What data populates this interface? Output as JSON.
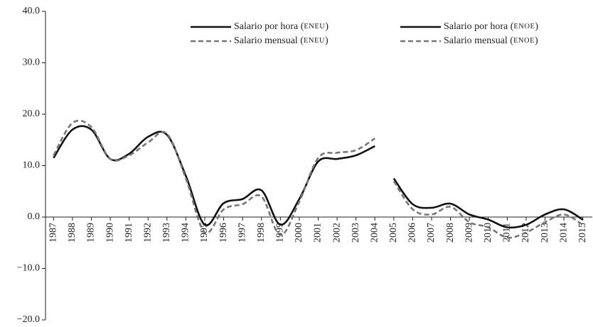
{
  "chart_data": {
    "type": "line",
    "categories": [
      "1987",
      "1988",
      "1989",
      "1990",
      "1991",
      "1992",
      "1993",
      "1994",
      "1995",
      "1996",
      "1997",
      "1998",
      "1999",
      "2000",
      "2001",
      "2002",
      "2003",
      "2004",
      "2005",
      "2006",
      "2007",
      "2008",
      "2009",
      "2010",
      "2011",
      "2012",
      "2013",
      "2014",
      "2015"
    ],
    "series": [
      {
        "name": "Salario por hora (ENEU)",
        "color": "#111111",
        "dash": false,
        "values": [
          11.5,
          17.0,
          17.0,
          11.3,
          12.3,
          15.6,
          16.0,
          8.0,
          -1.5,
          2.7,
          3.5,
          5.2,
          -1.5,
          3.5,
          10.8,
          11.3,
          12.0,
          13.8,
          null,
          null,
          null,
          null,
          null,
          null,
          null,
          null,
          null,
          null,
          null
        ]
      },
      {
        "name": "Salario mensual (ENEU)",
        "color": "#777777",
        "dash": true,
        "values": [
          12.0,
          18.3,
          17.5,
          11.3,
          12.0,
          14.5,
          16.2,
          7.5,
          -3.0,
          1.5,
          2.5,
          4.0,
          -3.5,
          3.0,
          11.5,
          12.5,
          13.0,
          15.3,
          null,
          null,
          null,
          null,
          null,
          null,
          null,
          null,
          null,
          null,
          null
        ]
      },
      {
        "name": "Salario por hora (ENOE)",
        "color": "#111111",
        "dash": false,
        "values": [
          null,
          null,
          null,
          null,
          null,
          null,
          null,
          null,
          null,
          null,
          null,
          null,
          null,
          null,
          null,
          null,
          null,
          null,
          7.5,
          2.5,
          1.8,
          2.6,
          0.5,
          -0.5,
          -2.0,
          -1.5,
          0.5,
          1.5,
          -0.5
        ]
      },
      {
        "name": "Salario mensual (ENOE)",
        "color": "#777777",
        "dash": true,
        "values": [
          null,
          null,
          null,
          null,
          null,
          null,
          null,
          null,
          null,
          null,
          null,
          null,
          null,
          null,
          null,
          null,
          null,
          null,
          7.0,
          1.5,
          0.5,
          2.0,
          -1.0,
          -2.0,
          -4.0,
          -3.0,
          -1.0,
          0.5,
          -1.5
        ]
      }
    ],
    "ylim": [
      -20,
      40
    ],
    "yticks": [
      {
        "value": -20,
        "label": "−20.0"
      },
      {
        "value": -10,
        "label": "−10.0"
      },
      {
        "value": 0,
        "label": "0.0"
      },
      {
        "value": 10,
        "label": "10.0"
      },
      {
        "value": 20,
        "label": "20.0"
      },
      {
        "value": 30,
        "label": "30.0"
      },
      {
        "value": 40,
        "label": "40.0"
      }
    ],
    "legend": "top"
  }
}
